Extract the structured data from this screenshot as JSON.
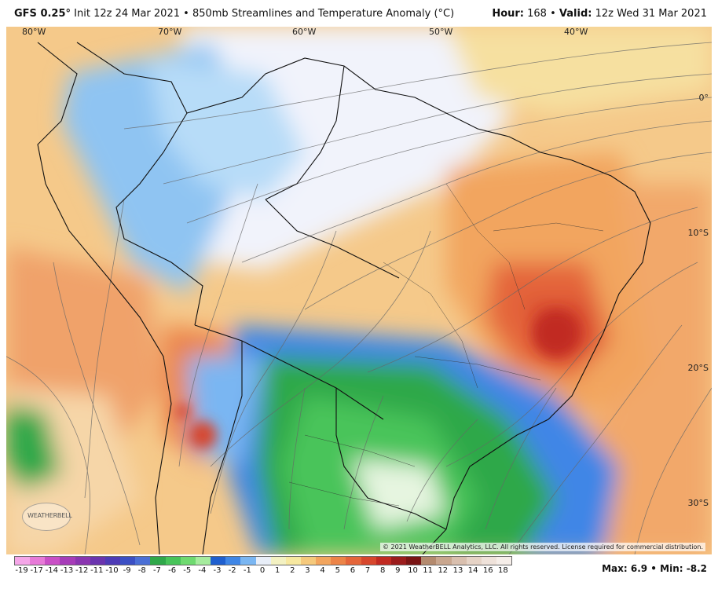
{
  "header": {
    "model": "GFS 0.25°",
    "init": "Init 12z 24 Mar 2021",
    "separator": "•",
    "product": "850mb Streamlines and Temperature Anomaly (°C)",
    "hour_label": "Hour:",
    "hour_value": "168",
    "valid_label": "Valid:",
    "valid_value": "12z Wed 31 Mar 2021"
  },
  "map": {
    "lon_labels": [
      "80°W",
      "70°W",
      "60°W",
      "50°W",
      "40°W"
    ],
    "lat_labels": [
      "0°",
      "10°S",
      "20°S",
      "30°S"
    ],
    "copyright": "© 2021 WeatherBELL Analytics, LLC. All rights reserved. License required for commercial distribution.",
    "logo_text": "WEATHERBELL"
  },
  "legend": {
    "labels": [
      "-19",
      "-17",
      "-14",
      "-13",
      "-12",
      "-11",
      "-10",
      "-9",
      "-8",
      "-7",
      "-6",
      "-5",
      "-4",
      "-3",
      "-2",
      "-1",
      "0",
      "1",
      "2",
      "3",
      "4",
      "5",
      "6",
      "7",
      "8",
      "9",
      "10",
      "11",
      "12",
      "13",
      "14",
      "16",
      "18"
    ],
    "colors": [
      "#f5a6e8",
      "#e77ad8",
      "#c94fc6",
      "#a63cb8",
      "#8a35b0",
      "#6a34ae",
      "#4d3bb6",
      "#3b4fc4",
      "#4b6fd6",
      "#2fa84a",
      "#48c45a",
      "#6fda70",
      "#a6ec9e",
      "#1f5fcf",
      "#3f86e6",
      "#7ab6f2",
      "#e8eef8",
      "#f3f1c2",
      "#f7e8a0",
      "#f5c97c",
      "#f2a55e",
      "#ec8448",
      "#e4653a",
      "#d7472d",
      "#c12a22",
      "#9b1c1c",
      "#7a1414",
      "#b48a6e",
      "#c9a68e",
      "#d9bfae",
      "#e6d3c6",
      "#efe2da",
      "#f6eee9"
    ]
  },
  "stats": {
    "max_label": "Max:",
    "max_value": "6.9",
    "separator": "•",
    "min_label": "Min:",
    "min_value": "-8.2"
  },
  "colors": {
    "cold_strong": "#1f5fcf",
    "cold_green": "#3fbf4a",
    "neutral": "#f2f4fb",
    "warm": "#f2a55e",
    "hot": "#d7472d",
    "border": "#111111"
  }
}
